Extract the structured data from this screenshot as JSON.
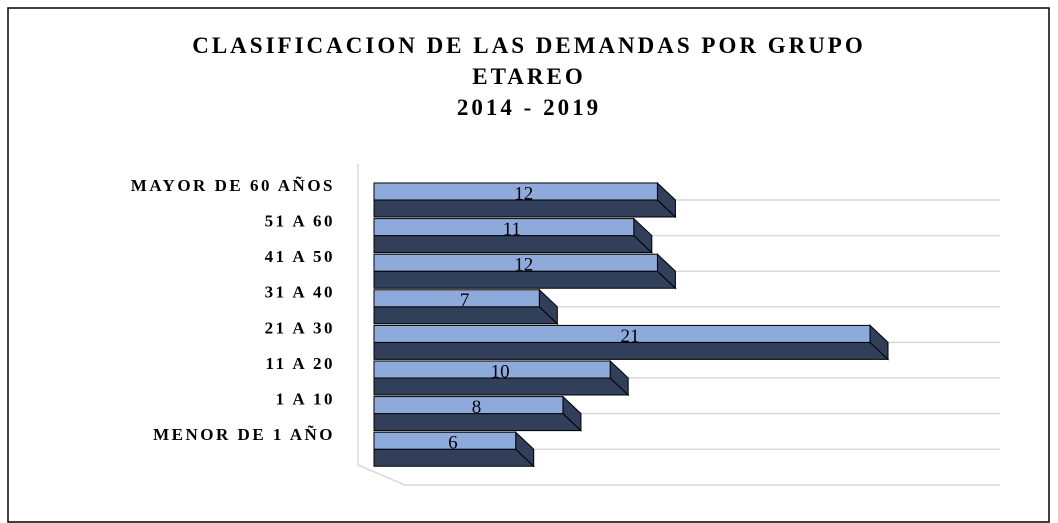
{
  "chart_data": {
    "type": "bar3d_horizontal",
    "title": "CLASIFICACION DE LAS DEMANDAS POR GRUPO ETAREO",
    "subtitle": "2014 - 2019",
    "categories": [
      "MAYOR DE 60 AÑOS",
      "51 A 60",
      "41 A 50",
      "31 A 40",
      "21 A 30",
      "11 A 20",
      "1 A 10",
      "MENOR DE 1 AÑO"
    ],
    "values": [
      12,
      11,
      12,
      7,
      21,
      10,
      8,
      6
    ],
    "color": "#8eaadb",
    "shade_color": "#323f5a"
  }
}
